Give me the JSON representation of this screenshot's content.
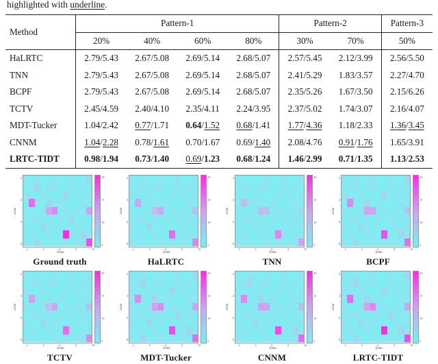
{
  "intro": {
    "before": "highlighted with ",
    "underlined": "underline",
    "after": "."
  },
  "table": {
    "method_label": "Method",
    "groups": [
      {
        "label": "Pattern-1",
        "cols": [
          "20%",
          "40%",
          "60%",
          "80%"
        ]
      },
      {
        "label": "Pattern-2",
        "cols": [
          "30%",
          "70%"
        ]
      },
      {
        "label": "Pattern-3",
        "cols": [
          "50%"
        ]
      }
    ],
    "rows": [
      {
        "method": "HaLRTC",
        "method_style": "n",
        "cells": [
          [
            "2.79/5.43",
            "nn"
          ],
          [
            "2.67/5.08",
            "nn"
          ],
          [
            "2.69/5.14",
            "nn"
          ],
          [
            "2.68/5.07",
            "nn"
          ],
          [
            "2.57/5.45",
            "nn"
          ],
          [
            "2.12/3.99",
            "nn"
          ],
          [
            "2.56/5.50",
            "nn"
          ]
        ]
      },
      {
        "method": "TNN",
        "method_style": "n",
        "cells": [
          [
            "2.79/5.43",
            "nn"
          ],
          [
            "2.67/5.08",
            "nn"
          ],
          [
            "2.69/5.14",
            "nn"
          ],
          [
            "2.68/5.07",
            "nn"
          ],
          [
            "2.41/5.29",
            "nn"
          ],
          [
            "1.83/3.57",
            "nn"
          ],
          [
            "2.27/4.70",
            "nn"
          ]
        ]
      },
      {
        "method": "BCPF",
        "method_style": "n",
        "cells": [
          [
            "2.79/5.43",
            "nn"
          ],
          [
            "2.67/5.08",
            "nn"
          ],
          [
            "2.69/5.14",
            "nn"
          ],
          [
            "2.68/5.07",
            "nn"
          ],
          [
            "2.35/5.26",
            "nn"
          ],
          [
            "1.67/3.50",
            "nn"
          ],
          [
            "2.15/6.26",
            "nn"
          ]
        ]
      },
      {
        "method": "TCTV",
        "method_style": "n",
        "cells": [
          [
            "2.45/4.59",
            "nn"
          ],
          [
            "2.40/4.10",
            "nn"
          ],
          [
            "2.35/4.11",
            "nn"
          ],
          [
            "2.24/3.95",
            "nn"
          ],
          [
            "2.37/5.02",
            "nn"
          ],
          [
            "1.74/3.07",
            "nn"
          ],
          [
            "2.16/4.07",
            "nn"
          ]
        ]
      },
      {
        "method": "MDT-Tucker",
        "method_style": "n",
        "cells": [
          [
            "1.04/2.42",
            "nn"
          ],
          [
            "0.77/1.71",
            "un"
          ],
          [
            "0.64/1.52",
            "bu"
          ],
          [
            "0.68/1.41",
            "un"
          ],
          [
            "1.77/4.36",
            "uu"
          ],
          [
            "1.18/2.33",
            "nn"
          ],
          [
            "1.36/3.45",
            "uu"
          ]
        ]
      },
      {
        "method": "CNNM",
        "method_style": "n",
        "cells": [
          [
            "1.04/2.28",
            "uu"
          ],
          [
            "0.78/1.61",
            "nu"
          ],
          [
            "0.70/1.67",
            "nn"
          ],
          [
            "0.69/1.40",
            "nu"
          ],
          [
            "2.08/4.76",
            "nn"
          ],
          [
            "0.91/1.76",
            "uu"
          ],
          [
            "1.65/3.91",
            "nn"
          ]
        ]
      },
      {
        "method": "LRTC-TIDT",
        "method_style": "b",
        "cells": [
          [
            "0.98/1.94",
            "bb"
          ],
          [
            "0.73/1.40",
            "bb"
          ],
          [
            "0.69/1.23",
            "ub"
          ],
          [
            "0.68/1.24",
            "bb"
          ],
          [
            "1.46/2.99",
            "bb"
          ],
          [
            "0.71/1.35",
            "bb"
          ],
          [
            "1.13/2.53",
            "bb"
          ]
        ]
      }
    ]
  },
  "figures": {
    "axis": {
      "xlabel": "Zone",
      "ylabel": "Zone",
      "y_ticks": [
        "2",
        "4",
        "6",
        "8"
      ],
      "x_ticks": [
        "2",
        "4",
        "6",
        "8",
        "10"
      ],
      "cbar_ticks": [
        "20",
        "15",
        "10",
        "5"
      ]
    },
    "colormap": [
      "#74f1f3",
      "#80edf3",
      "#8fe4f1",
      "#a2d6ef",
      "#b7c0ee",
      "#cda4ef",
      "#de87f1",
      "#eb68f2",
      "#f748ef",
      "#ff2ae2"
    ],
    "rows": [
      [
        {
          "caption": "Ground truth",
          "grid": [
            "212112112113",
            "123122112121",
            "211211131212",
            "172131211121",
            "211256121215",
            "122121213121",
            "211312111212",
            "121121192131",
            "213112121218"
          ]
        },
        {
          "caption": "HaLRTC",
          "grid": [
            "212112112112",
            "122122112121",
            "211211121212",
            "152121211121",
            "211245121214",
            "122121212121",
            "211312111212",
            "121121172121",
            "212112121216"
          ]
        },
        {
          "caption": "TNN",
          "grid": [
            "211112112112",
            "122122112121",
            "211211121212",
            "142121211121",
            "211244121213",
            "122121212121",
            "211212111212",
            "121121162121",
            "212112121215"
          ]
        },
        {
          "caption": "BCPF",
          "grid": [
            "212112112113",
            "122122112121",
            "211211131212",
            "162131211121",
            "211255121214",
            "122121212121",
            "211312111212",
            "121121182131",
            "213112121217"
          ]
        }
      ],
      [
        {
          "caption": "TCTV",
          "grid": [
            "212112112112",
            "122122112121",
            "211211121212",
            "152121211121",
            "211245121214",
            "122121212121",
            "211312111212",
            "121121172121",
            "212112121216"
          ]
        },
        {
          "caption": "MDT-Tucker",
          "grid": [
            "212112112113",
            "123122112121",
            "211211131212",
            "162131211121",
            "211256121215",
            "122121213121",
            "211312111212",
            "121121182131",
            "213112121217"
          ]
        },
        {
          "caption": "CNNM",
          "grid": [
            "212112112112",
            "123122112121",
            "211211121212",
            "162131211121",
            "211255121214",
            "122121212121",
            "211312111212",
            "121121182131",
            "212112121217"
          ]
        },
        {
          "caption": "LRTC-TIDT",
          "grid": [
            "212112112113",
            "123122112121",
            "211211131212",
            "172131211121",
            "211256121215",
            "122121213121",
            "211312111212",
            "121121192131",
            "213112121218"
          ]
        }
      ]
    ]
  }
}
